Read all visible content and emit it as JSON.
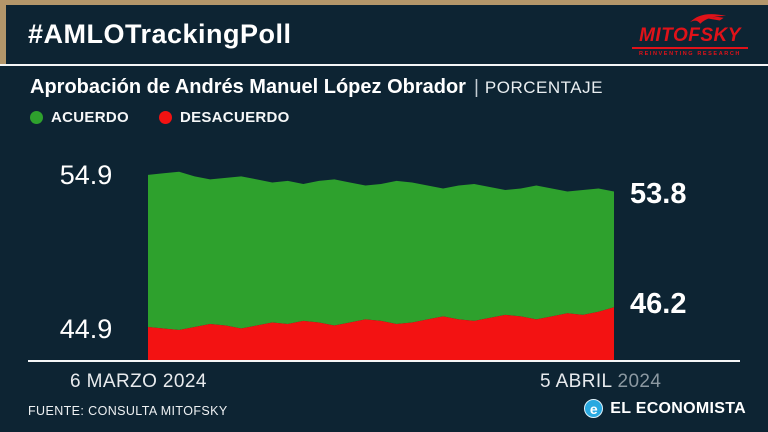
{
  "frame": {
    "accent_color": "#b3966a",
    "background_color": "#0d2433"
  },
  "header": {
    "hashtag": "#AMLOTrackingPoll"
  },
  "brand": {
    "name": "MITOFSKY",
    "tagline": "REINVENTING RESEARCH",
    "color": "#e01219"
  },
  "title": {
    "main": "Aprobación de Andrés Manuel López Obrador",
    "divider": "|",
    "sub": "PORCENTAJE"
  },
  "legend": [
    {
      "label": "ACUERDO",
      "color": "#2ea12d"
    },
    {
      "label": "DESACUERDO",
      "color": "#f31212"
    }
  ],
  "chart_data": {
    "type": "area",
    "title": "Aprobación de Andrés Manuel López Obrador (porcentaje)",
    "x_start_label": "6 MARZO 2024",
    "x_end_label": "5 ABRIL 2024",
    "ylim": [
      42.6,
      56.4
    ],
    "grid": false,
    "legend_position": "top-left",
    "series": [
      {
        "name": "ACUERDO",
        "color": "#2ea12d",
        "start_label": "54.9",
        "end_label": "53.8",
        "values": [
          54.9,
          55.0,
          55.1,
          54.8,
          54.6,
          54.7,
          54.8,
          54.6,
          54.4,
          54.5,
          54.3,
          54.5,
          54.6,
          54.4,
          54.2,
          54.3,
          54.5,
          54.4,
          54.2,
          54.0,
          54.2,
          54.3,
          54.1,
          53.9,
          54.0,
          54.2,
          54.0,
          53.8,
          53.9,
          54.0,
          53.8
        ]
      },
      {
        "name": "DESACUERDO",
        "color": "#f31212",
        "start_label": "44.9",
        "end_label": "46.2",
        "values": [
          44.9,
          44.8,
          44.7,
          44.9,
          45.1,
          45.0,
          44.8,
          45.0,
          45.2,
          45.1,
          45.3,
          45.2,
          45.0,
          45.2,
          45.4,
          45.3,
          45.1,
          45.2,
          45.4,
          45.6,
          45.4,
          45.3,
          45.5,
          45.7,
          45.6,
          45.4,
          45.6,
          45.8,
          45.7,
          45.9,
          46.2
        ]
      }
    ]
  },
  "axis": {
    "start_date": "6 MARZO 2024",
    "end_date_day": "5 ABRIL",
    "end_date_year": "2024"
  },
  "footer": {
    "source": "FUENTE: CONSULTA MITOFSKY",
    "publisher": "EL ECONOMISTA",
    "publisher_mark": "e"
  }
}
